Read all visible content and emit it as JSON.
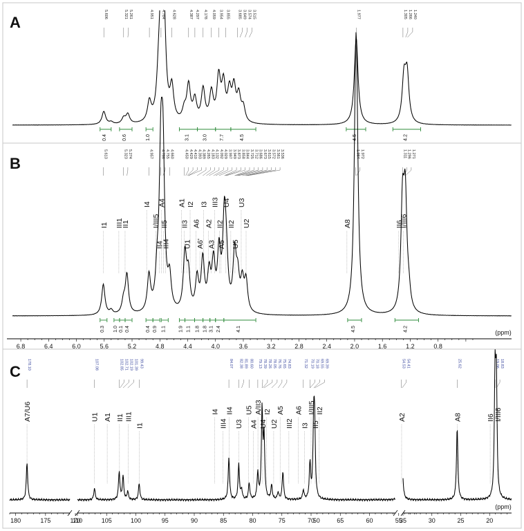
{
  "panels": [
    {
      "id": "A",
      "label": "A",
      "peak_labels": [
        "5.606",
        "5.321",
        "5.261",
        "4.951",
        "4.784",
        "4.628",
        "4.387",
        "4.297",
        "4.178",
        "4.059",
        "3.954",
        "3.855",
        "3.685",
        "3.649",
        "3.574",
        "3.515",
        "1.977",
        "1.305",
        "1.266",
        "1.240"
      ],
      "integrals": [
        {
          "value": "0.4",
          "from": 5.66,
          "to": 5.5
        },
        {
          "value": "0.6",
          "from": 5.38,
          "to": 5.2
        },
        {
          "value": "1.0",
          "from": 5.0,
          "to": 4.9
        },
        {
          "value": "3.1",
          "from": 4.52,
          "to": 4.26
        },
        {
          "value": "3.0",
          "from": 4.26,
          "to": 4.0
        },
        {
          "value": "7.7",
          "from": 4.0,
          "to": 3.78
        },
        {
          "value": "4.5",
          "from": 3.78,
          "to": 3.42
        },
        {
          "value": "4.5",
          "from": 2.12,
          "to": 1.84
        },
        {
          "value": "4.2",
          "from": 1.45,
          "to": 1.05
        }
      ]
    },
    {
      "id": "B",
      "label": "B",
      "peak_labels": [
        "5.613",
        "5.323",
        "5.274",
        "4.957",
        "4.786",
        "4.755",
        "4.660",
        "4.450",
        "4.429",
        "4.410",
        "4.393",
        "4.389",
        "4.265",
        "4.183",
        "4.132",
        "4.092",
        "4.029",
        "3.997",
        "3.949",
        "3.873",
        "3.858",
        "3.844",
        "3.725",
        "3.712",
        "3.686",
        "3.673",
        "3.615",
        "3.572",
        "3.561",
        "3.536",
        "1.984",
        "1.972",
        "1.311",
        "1.296",
        "1.271"
      ],
      "assignments": [
        {
          "label": "I1",
          "ppm": 5.61
        },
        {
          "label": "III1",
          "ppm": 5.39
        },
        {
          "label": "II1",
          "ppm": 5.3
        },
        {
          "label": "I4",
          "ppm": 4.99
        },
        {
          "label": "I/III5",
          "ppm": 4.86
        },
        {
          "label": "II4",
          "ppm": 4.81
        },
        {
          "label": "A4",
          "ppm": 4.78
        },
        {
          "label": "II5",
          "ppm": 4.745
        },
        {
          "label": "III4",
          "ppm": 4.72
        },
        {
          "label": "A1",
          "ppm": 4.49
        },
        {
          "label": "II3",
          "ppm": 4.45
        },
        {
          "label": "U1",
          "ppm": 4.41
        },
        {
          "label": "I2",
          "ppm": 4.365
        },
        {
          "label": "A6",
          "ppm": 4.28
        },
        {
          "label": "A6'",
          "ppm": 4.225
        },
        {
          "label": "I3",
          "ppm": 4.17
        },
        {
          "label": "A2",
          "ppm": 4.1
        },
        {
          "label": "A3",
          "ppm": 4.06
        },
        {
          "label": "III3",
          "ppm": 4.01
        },
        {
          "label": "II2",
          "ppm": 3.945
        },
        {
          "label": "A5",
          "ppm": 3.92
        },
        {
          "label": "U4",
          "ppm": 3.85
        },
        {
          "label": "II2",
          "ppm": 3.78
        },
        {
          "label": "U5",
          "ppm": 3.72
        },
        {
          "label": "U3",
          "ppm": 3.63
        },
        {
          "label": "U2",
          "ppm": 3.56
        },
        {
          "label": "A8",
          "ppm": 2.11
        },
        {
          "label": "II6",
          "ppm": 1.365
        },
        {
          "label": "I/III6",
          "ppm": 1.3
        }
      ],
      "integrals": [
        {
          "value": "0.3",
          "from": 5.66,
          "to": 5.56
        },
        {
          "value": "1.0",
          "from": 5.46,
          "to": 5.38
        },
        {
          "value": "0.1",
          "from": 5.38,
          "to": 5.3
        },
        {
          "value": "0.4",
          "from": 5.3,
          "to": 5.2
        },
        {
          "value": "0.4",
          "from": 5.0,
          "to": 4.9
        },
        {
          "value": "0.9",
          "from": 4.9,
          "to": 4.8
        },
        {
          "value": "1.1",
          "from": 4.78,
          "to": 4.68
        },
        {
          "value": "1.9",
          "from": 4.52,
          "to": 4.44
        },
        {
          "value": "1.1",
          "from": 4.44,
          "to": 4.3
        },
        {
          "value": "1.8",
          "from": 4.3,
          "to": 4.18
        },
        {
          "value": "1.8",
          "from": 4.18,
          "to": 4.08
        },
        {
          "value": "3.1",
          "from": 4.08,
          "to": 4.0
        },
        {
          "value": "2.4",
          "from": 4.0,
          "to": 3.88
        },
        {
          "value": "4.1",
          "from": 3.88,
          "to": 3.42
        },
        {
          "value": "4.5",
          "from": 2.1,
          "to": 1.9
        },
        {
          "value": "4.2",
          "from": 1.42,
          "to": 1.08
        }
      ]
    },
    {
      "id": "C",
      "label": "C",
      "peak_labels": [
        "178.10",
        "107.08",
        "102.85",
        "102.71",
        "102.19",
        "101.39",
        "99.43",
        "84.07",
        "82.38",
        "81.89",
        "80.60",
        "79.13",
        "78.39",
        "78.26",
        "78.05",
        "76.76",
        "75.65",
        "74.83",
        "71.32",
        "70.19",
        "70.18",
        "69.55",
        "69.39",
        "54.53",
        "54.41",
        "25.62",
        "19.06",
        "18.83"
      ],
      "assignments": [
        {
          "label": "A7/U6",
          "ppm": 178.1
        },
        {
          "label": "U1",
          "ppm": 107.08
        },
        {
          "label": "A1",
          "ppm": 104.9
        },
        {
          "label": "II1",
          "ppm": 102.8
        },
        {
          "label": "III1",
          "ppm": 101.3
        },
        {
          "label": "I1",
          "ppm": 99.43
        },
        {
          "label": "I4",
          "ppm": 86.5
        },
        {
          "label": "III4",
          "ppm": 85.1
        },
        {
          "label": "II4",
          "ppm": 84.0
        },
        {
          "label": "U3",
          "ppm": 82.4
        },
        {
          "label": "U5",
          "ppm": 80.7
        },
        {
          "label": "A4",
          "ppm": 79.9
        },
        {
          "label": "A/II3",
          "ppm": 79.1
        },
        {
          "label": "U4",
          "ppm": 78.3
        },
        {
          "label": "I2",
          "ppm": 77.6
        },
        {
          "label": "U2",
          "ppm": 76.4
        },
        {
          "label": "A5",
          "ppm": 75.3
        },
        {
          "label": "III2",
          "ppm": 73.8
        },
        {
          "label": "A6",
          "ppm": 72.2
        },
        {
          "label": "I3",
          "ppm": 71.1
        },
        {
          "label": "I/III5",
          "ppm": 70.0
        },
        {
          "label": "II5",
          "ppm": 69.3
        },
        {
          "label": "II2",
          "ppm": 68.6
        },
        {
          "label": "A2",
          "ppm": 54.5
        },
        {
          "label": "A8",
          "ppm": 25.62
        },
        {
          "label": "II6",
          "ppm": 19.9
        },
        {
          "label": "I/III6",
          "ppm": 18.6
        }
      ]
    }
  ],
  "chart_data": {
    "type": "line",
    "title": "",
    "figures": [
      {
        "panel": "A",
        "nucleus": "1H",
        "x_range_ppm": [
          6.9,
          0.1
        ],
        "peaks": [
          {
            "ppm": 5.606,
            "height": 0.18
          },
          {
            "ppm": 5.5,
            "height": 0.03
          },
          {
            "ppm": 5.321,
            "height": 0.08
          },
          {
            "ppm": 5.261,
            "height": 0.13
          },
          {
            "ppm": 4.951,
            "height": 0.27
          },
          {
            "ppm": 4.82,
            "height": 0.4
          },
          {
            "ppm": 4.784,
            "height": 1.3
          },
          {
            "ppm": 4.74,
            "height": 1.3
          },
          {
            "ppm": 4.628,
            "height": 0.45
          },
          {
            "ppm": 4.45,
            "height": 0.15
          },
          {
            "ppm": 4.387,
            "height": 0.5
          },
          {
            "ppm": 4.297,
            "height": 0.3
          },
          {
            "ppm": 4.178,
            "height": 0.45
          },
          {
            "ppm": 4.059,
            "height": 0.4
          },
          {
            "ppm": 3.954,
            "height": 0.6
          },
          {
            "ppm": 3.885,
            "height": 0.5
          },
          {
            "ppm": 3.8,
            "height": 0.4
          },
          {
            "ppm": 3.735,
            "height": 0.45
          },
          {
            "ppm": 3.665,
            "height": 0.35
          },
          {
            "ppm": 3.6,
            "height": 0.2
          },
          {
            "ppm": 1.977,
            "height": 1.2
          },
          {
            "ppm": 1.29,
            "height": 0.6
          },
          {
            "ppm": 1.245,
            "height": 0.65
          }
        ]
      },
      {
        "panel": "B",
        "nucleus": "1H",
        "x_label": "(ppm)",
        "x_range_ppm": [
          6.9,
          0.1
        ],
        "x_ticks": [
          6.8,
          6.4,
          6.0,
          5.6,
          5.2,
          4.8,
          4.4,
          4.0,
          3.6,
          3.2,
          2.8,
          2.4,
          2.0,
          1.6,
          1.2,
          0.8
        ],
        "peaks": [
          {
            "ppm": 5.613,
            "height": 0.3
          },
          {
            "ppm": 5.5,
            "height": 0.04
          },
          {
            "ppm": 5.323,
            "height": 0.12
          },
          {
            "ppm": 5.274,
            "height": 0.38
          },
          {
            "ppm": 4.957,
            "height": 0.35
          },
          {
            "ppm": 4.84,
            "height": 0.28
          },
          {
            "ppm": 4.786,
            "height": 1.35
          },
          {
            "ppm": 4.755,
            "height": 1.35
          },
          {
            "ppm": 4.66,
            "height": 0.3
          },
          {
            "ppm": 4.44,
            "height": 0.55
          },
          {
            "ppm": 4.39,
            "height": 0.35
          },
          {
            "ppm": 4.265,
            "height": 0.32
          },
          {
            "ppm": 4.183,
            "height": 0.5
          },
          {
            "ppm": 4.092,
            "height": 0.35
          },
          {
            "ppm": 4.029,
            "height": 0.45
          },
          {
            "ppm": 3.949,
            "height": 0.55
          },
          {
            "ppm": 3.873,
            "height": 0.85
          },
          {
            "ppm": 3.844,
            "height": 0.4
          },
          {
            "ppm": 3.725,
            "height": 0.55
          },
          {
            "ppm": 3.68,
            "height": 0.3
          },
          {
            "ppm": 3.615,
            "height": 0.28
          },
          {
            "ppm": 3.561,
            "height": 0.3
          },
          {
            "ppm": 1.984,
            "height": 1.5
          },
          {
            "ppm": 1.972,
            "height": 1.4
          },
          {
            "ppm": 1.311,
            "height": 1.0
          },
          {
            "ppm": 1.271,
            "height": 1.05
          },
          {
            "ppm": 1.22,
            "height": 0.15
          }
        ]
      },
      {
        "panel": "C",
        "nucleus": "13C",
        "x_label": "(ppm)",
        "x_axis_breaks": [
          [
            170,
            110
          ],
          [
            52,
            35
          ]
        ],
        "x_ticks": [
          180,
          175,
          170,
          110,
          105,
          100,
          95,
          90,
          85,
          80,
          75,
          70,
          65,
          60,
          55,
          50,
          35,
          30,
          25,
          20
        ],
        "peaks": [
          {
            "ppm": 178.1,
            "height": 0.32
          },
          {
            "ppm": 107.08,
            "height": 0.1
          },
          {
            "ppm": 102.85,
            "height": 0.24
          },
          {
            "ppm": 102.19,
            "height": 0.2
          },
          {
            "ppm": 101.39,
            "height": 0.07
          },
          {
            "ppm": 99.43,
            "height": 0.14
          },
          {
            "ppm": 84.07,
            "height": 0.36
          },
          {
            "ppm": 82.38,
            "height": 0.3
          },
          {
            "ppm": 81.89,
            "height": 0.08
          },
          {
            "ppm": 80.6,
            "height": 0.14
          },
          {
            "ppm": 79.13,
            "height": 0.22
          },
          {
            "ppm": 78.39,
            "height": 0.75
          },
          {
            "ppm": 78.05,
            "height": 0.5
          },
          {
            "ppm": 76.76,
            "height": 0.12
          },
          {
            "ppm": 75.65,
            "height": 0.06
          },
          {
            "ppm": 74.83,
            "height": 0.24
          },
          {
            "ppm": 71.32,
            "height": 0.08
          },
          {
            "ppm": 70.19,
            "height": 0.3
          },
          {
            "ppm": 69.55,
            "height": 0.6
          },
          {
            "ppm": 69.39,
            "height": 0.55
          },
          {
            "ppm": 54.53,
            "height": 0.3
          },
          {
            "ppm": 54.41,
            "height": 0.26
          },
          {
            "ppm": 25.62,
            "height": 0.62
          },
          {
            "ppm": 19.06,
            "height": 1.0
          },
          {
            "ppm": 18.83,
            "height": 0.95
          }
        ]
      }
    ]
  }
}
